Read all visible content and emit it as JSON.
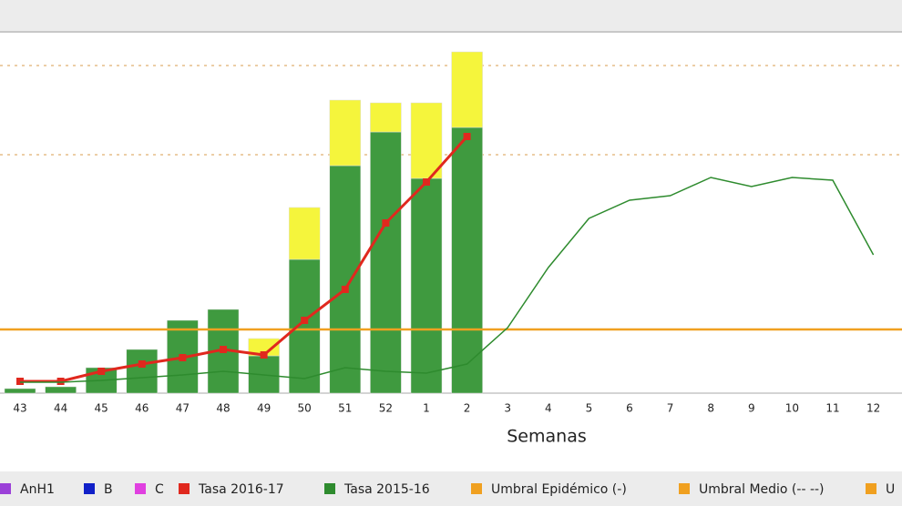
{
  "chart_data": {
    "type": "bar",
    "x_label": "Semanas",
    "categories": [
      "43",
      "44",
      "45",
      "46",
      "47",
      "48",
      "49",
      "50",
      "51",
      "52",
      "1",
      "2",
      "3",
      "4",
      "5",
      "6",
      "7",
      "8",
      "9",
      "10",
      "11",
      "12"
    ],
    "ylim": [
      0,
      400
    ],
    "grid_lines": [
      262,
      360
    ],
    "bar_series": [
      {
        "color": "#3f9a3f",
        "values": [
          5,
          7,
          28,
          48,
          80,
          92,
          41,
          147,
          250,
          287,
          236,
          292,
          null,
          null,
          null,
          null,
          null,
          null,
          null,
          null,
          null,
          null
        ]
      },
      {
        "color": "#f5f53c",
        "values": [
          0,
          0,
          0,
          0,
          0,
          0,
          19,
          57,
          72,
          32,
          83,
          83,
          null,
          null,
          null,
          null,
          null,
          null,
          null,
          null,
          null,
          null
        ]
      }
    ],
    "line_series": [
      {
        "name": "Tasa 2016-17",
        "color": "#e0281e",
        "values": [
          13,
          13,
          24,
          32,
          39,
          48,
          42,
          80,
          114,
          187,
          232,
          282,
          null,
          null,
          null,
          null,
          null,
          null,
          null,
          null,
          null,
          null
        ]
      },
      {
        "name": "Tasa 2015-16",
        "color": "#2e8b2e",
        "values": [
          12,
          12,
          14,
          17,
          20,
          24,
          20,
          16,
          28,
          24,
          22,
          32,
          72,
          138,
          192,
          212,
          217,
          237,
          227,
          237,
          234,
          152
        ]
      }
    ],
    "thresholds": [
      {
        "name": "Umbral Epidémico (-)",
        "color": "#f0a020",
        "value": 70,
        "dashed": false
      },
      {
        "name": "Umbral Medio (-- --)",
        "color": "#f0a020",
        "value": 262,
        "dashed": true
      },
      {
        "name": "U",
        "color": "#f0a020",
        "value": 360,
        "dashed": true
      }
    ],
    "legend": [
      {
        "label": "AnH1",
        "color": "#9b40d8"
      },
      {
        "label": "B",
        "color": "#1020c8"
      },
      {
        "label": "C",
        "color": "#e040e0"
      }
    ]
  }
}
